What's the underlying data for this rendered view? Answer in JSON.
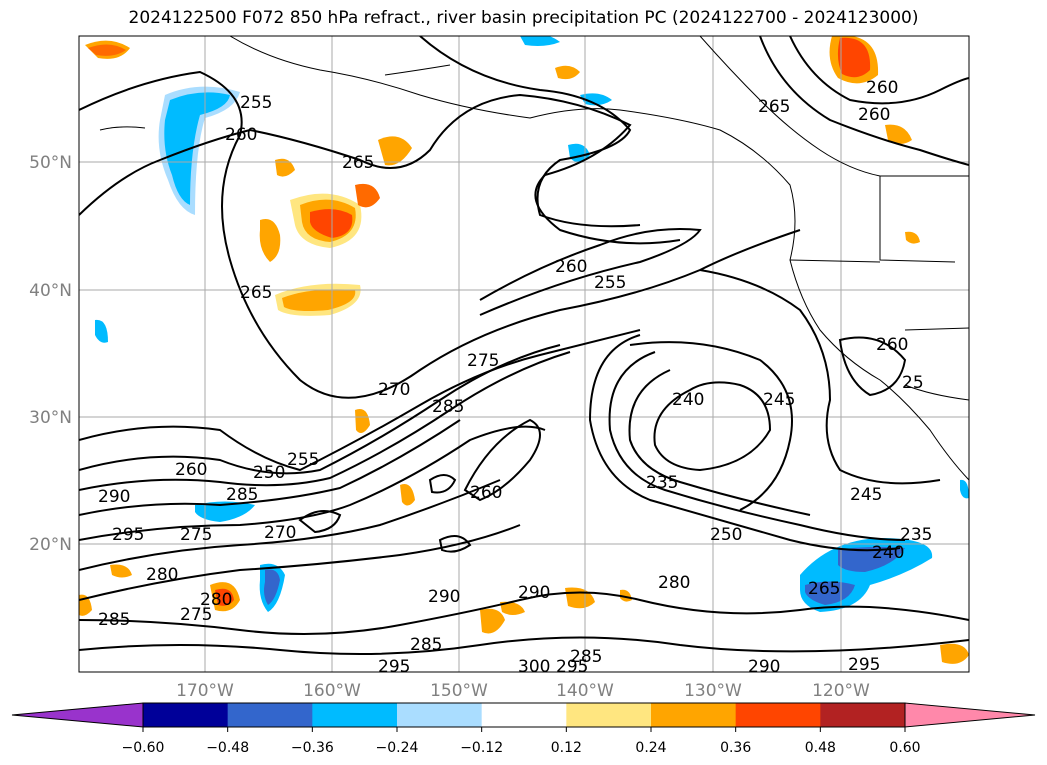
{
  "title": "2024122500 F072 850 hPa refract., river basin precipitation PC (2024122700 - 2024123000)",
  "latitude_labels": [
    "50°N",
    "40°N",
    "30°N",
    "20°N"
  ],
  "longitude_labels": [
    "170°W",
    "160°W",
    "150°W",
    "140°W",
    "130°W",
    "120°W"
  ],
  "contour_labels": [
    "255",
    "260",
    "265",
    "260",
    "265",
    "255",
    "260",
    "265",
    "270",
    "275",
    "285",
    "240",
    "235",
    "245",
    "250",
    "260",
    "250",
    "255",
    "285",
    "290",
    "295",
    "270",
    "275",
    "280",
    "260",
    "260",
    "245",
    "235",
    "240",
    "265",
    "280",
    "290",
    "290",
    "275",
    "285",
    "285",
    "295",
    "300",
    "295",
    "285",
    "290",
    "295",
    "280",
    "260",
    "25"
  ],
  "colorbar": {
    "tick_labels": [
      "−0.60",
      "−0.48",
      "−0.36",
      "−0.24",
      "−0.12",
      "0.12",
      "0.24",
      "0.36",
      "0.48",
      "0.60"
    ],
    "colors": [
      "#9933cc",
      "#000099",
      "#3366cc",
      "#00bbff",
      "#aaddff",
      "#ffffff",
      "#ffe680",
      "#ffa500",
      "#ff4500",
      "#b22222",
      "#ff88aa"
    ]
  }
}
